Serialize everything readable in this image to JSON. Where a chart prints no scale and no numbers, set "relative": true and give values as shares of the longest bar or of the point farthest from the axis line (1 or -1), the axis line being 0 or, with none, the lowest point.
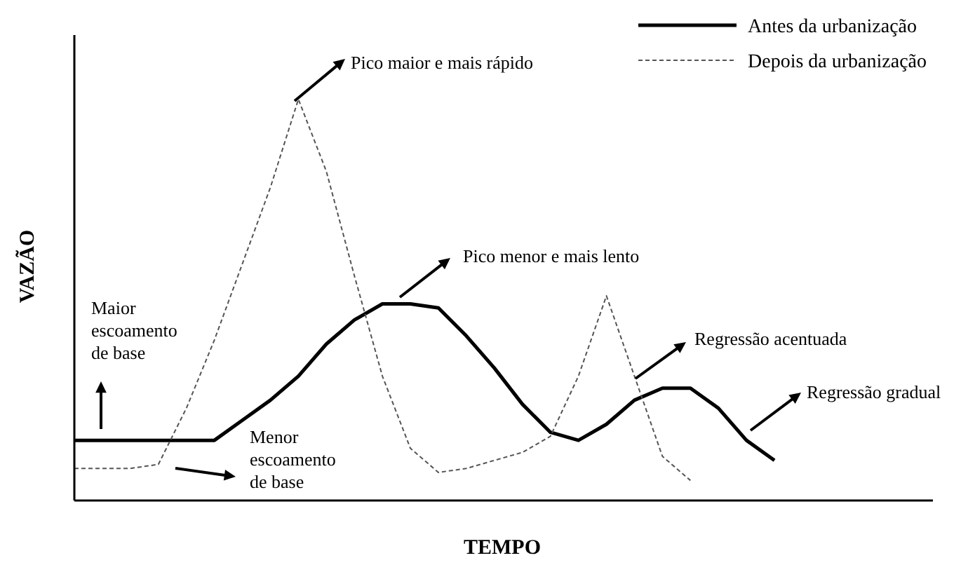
{
  "chart_data": {
    "type": "line",
    "relative": true,
    "xlabel": "TEMPO",
    "ylabel": "VAZÃO",
    "legend": "top right",
    "marker": "none",
    "categories": [
      null,
      null,
      null,
      null,
      null,
      null,
      null,
      null,
      null,
      null,
      null,
      null,
      null,
      null,
      null,
      null,
      null,
      null,
      null,
      null,
      null,
      null,
      null,
      null,
      null,
      null,
      null
    ],
    "series": [
      {
        "name": "Antes da urbanização",
        "color": "#000000",
        "line_style": "solid",
        "values": [
          0.15,
          0.15,
          0.15,
          0.15,
          0.15,
          0.15,
          0.2,
          0.25,
          0.31,
          0.39,
          0.45,
          0.49,
          0.49,
          0.48,
          0.41,
          0.33,
          0.24,
          0.17,
          0.15,
          0.19,
          0.25,
          0.28,
          0.28,
          0.23,
          0.15,
          0.1,
          null
        ]
      },
      {
        "name": "Depois da urbanização",
        "color": "#555555",
        "line_style": "dashed",
        "values": [
          0.08,
          0.08,
          0.08,
          0.09,
          0.23,
          0.4,
          0.59,
          0.78,
          1,
          0.82,
          0.56,
          0.31,
          0.13,
          0.07,
          0.08,
          0.1,
          0.12,
          0.16,
          0.31,
          0.51,
          0.31,
          0.11,
          0.05,
          null,
          null,
          null,
          null
        ]
      }
    ],
    "annotations": [
      "Pico maior e mais rápido",
      "Pico menor e mais lento",
      "Regressão acentuada",
      "Regressão gradual",
      "Maior escoamento de base",
      "Menor escoamento de base"
    ]
  }
}
